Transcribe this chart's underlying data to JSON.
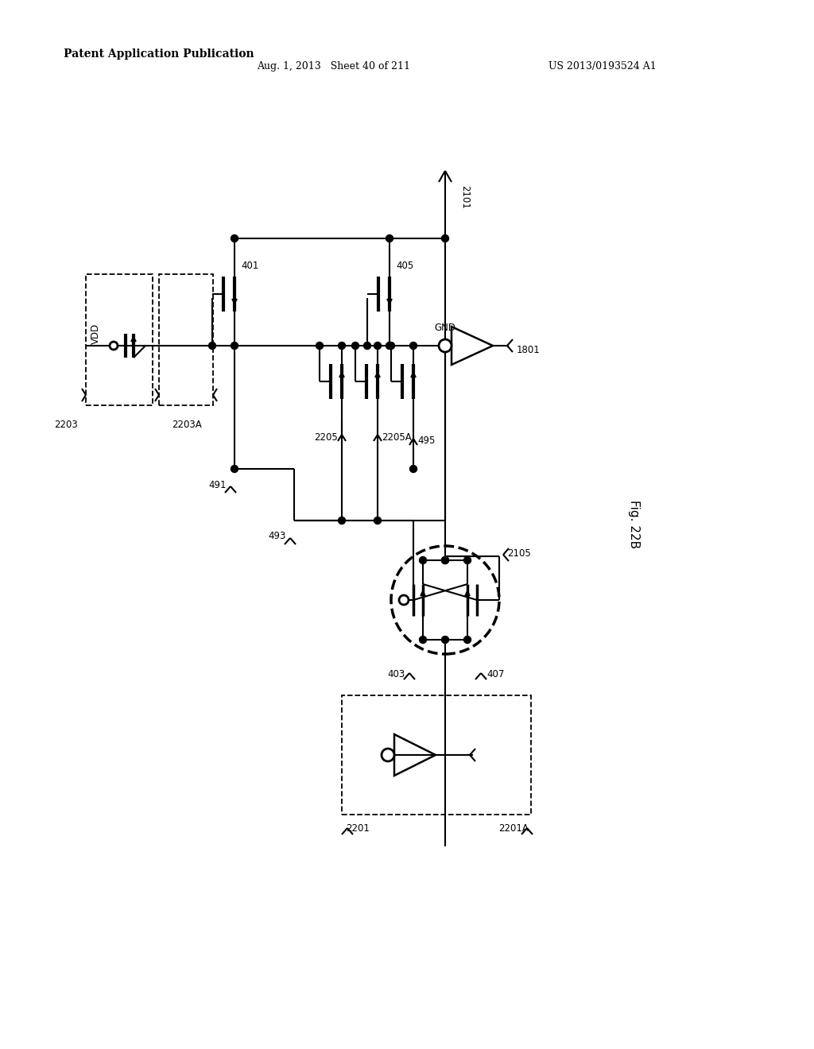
{
  "bg": "#ffffff",
  "lc": "#000000",
  "header_left": "Patent Application Publication",
  "header_mid": "Aug. 1, 2013   Sheet 40 of 211",
  "header_right": "US 2013/0193524 A1",
  "fig_label": "Fig. 22B",
  "font_size": 8.5
}
